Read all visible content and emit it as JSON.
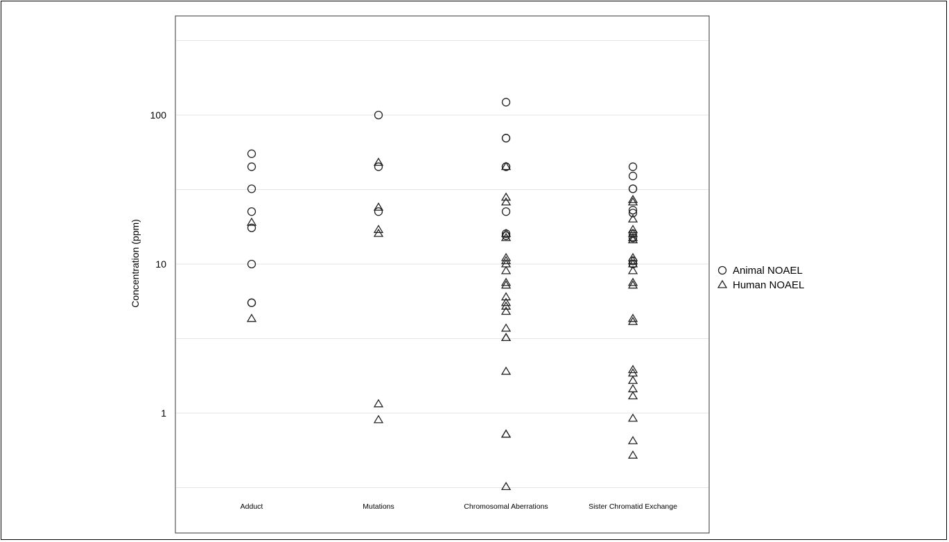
{
  "chart_data": {
    "type": "scatter",
    "title": "",
    "xlabel": "",
    "ylabel": "Concentration (ppm)",
    "y_scale": "log",
    "ylim": [
      0.18,
      550
    ],
    "y_ticks": [
      1,
      10,
      100
    ],
    "y_tick_labels": [
      "1",
      "10",
      "100"
    ],
    "grid": true,
    "legend_position": "right",
    "categories": [
      "Adduct",
      "Mutations",
      "Chromosomal Aberrations",
      "Sister Chromatid Exchange"
    ],
    "series": [
      {
        "name": "Animal NOAEL",
        "marker": "circle",
        "values": [
          [
            55,
            45,
            32,
            22.5,
            17.5,
            10,
            5.5,
            5.5
          ],
          [
            100,
            45,
            22.5
          ],
          [
            122,
            70,
            70,
            45,
            45,
            22.5,
            16,
            15.5
          ],
          [
            45,
            39,
            32,
            32,
            23,
            22,
            16,
            15,
            10.5,
            10
          ]
        ]
      },
      {
        "name": "Human NOAEL",
        "marker": "triangle",
        "values": [
          [
            19,
            4.3
          ],
          [
            48,
            24,
            17,
            16,
            1.15,
            0.9
          ],
          [
            45,
            28,
            26,
            16,
            15,
            11,
            10.5,
            10,
            9,
            7.5,
            7.2,
            6,
            5.5,
            5.2,
            4.8,
            3.7,
            3.2,
            3.2,
            1.9,
            0.72,
            0.72,
            0.32
          ],
          [
            27,
            26,
            20,
            17,
            16,
            15,
            14.5,
            11,
            10.5,
            10,
            9,
            7.5,
            7.2,
            4.3,
            4.1,
            1.95,
            1.85,
            1.65,
            1.45,
            1.3,
            0.92,
            0.65,
            0.52
          ]
        ]
      }
    ]
  },
  "colors": {
    "marker_stroke": "#222222",
    "grid": "#e4e4e4",
    "frame": "#333333"
  }
}
